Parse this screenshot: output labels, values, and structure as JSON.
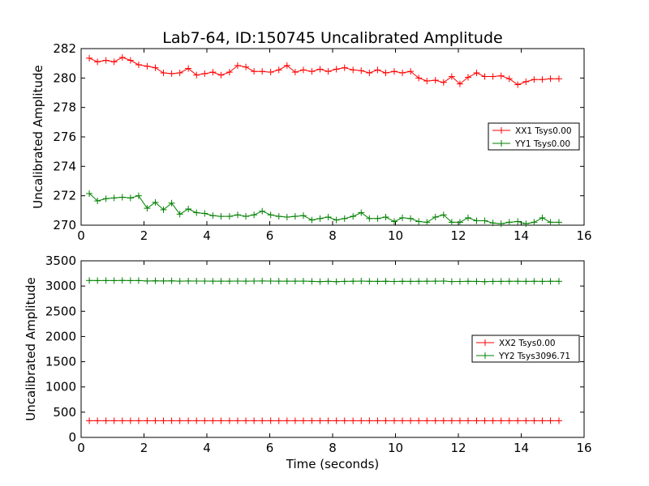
{
  "colors": {
    "red": "#ff0000",
    "green": "#008000",
    "axis": "#000000",
    "background": "#ffffff"
  },
  "title": "Lab7-64, ID:150745 Uncalibrated Amplitude",
  "xlabel": "Time (seconds)",
  "chart_data": [
    {
      "type": "line",
      "ylabel": "Uncalibrated Amplitude",
      "xlim": [
        0,
        16
      ],
      "ylim": [
        270,
        282
      ],
      "xticks": [
        0,
        2,
        4,
        6,
        8,
        10,
        12,
        14,
        16
      ],
      "yticks": [
        270,
        272,
        274,
        276,
        278,
        280,
        282
      ],
      "legend_position": "right",
      "series": [
        {
          "name": "XX1 Tsys0.00",
          "color": "#ff0000",
          "x": [
            0.26,
            0.52,
            0.79,
            1.05,
            1.31,
            1.57,
            1.83,
            2.1,
            2.36,
            2.62,
            2.88,
            3.14,
            3.41,
            3.67,
            3.93,
            4.19,
            4.45,
            4.72,
            4.98,
            5.24,
            5.5,
            5.76,
            6.03,
            6.29,
            6.55,
            6.81,
            7.07,
            7.34,
            7.6,
            7.86,
            8.12,
            8.38,
            8.65,
            8.91,
            9.17,
            9.43,
            9.69,
            9.96,
            10.22,
            10.48,
            10.74,
            11.0,
            11.27,
            11.53,
            11.79,
            12.05,
            12.31,
            12.58,
            12.84,
            13.1,
            13.36,
            13.62,
            13.89,
            14.15,
            14.41,
            14.67,
            14.93,
            15.2
          ],
          "y": [
            281.35,
            281.1,
            281.2,
            281.1,
            281.4,
            281.2,
            280.9,
            280.8,
            280.7,
            280.35,
            280.3,
            280.35,
            280.65,
            280.2,
            280.3,
            280.4,
            280.2,
            280.4,
            280.85,
            280.75,
            280.45,
            280.45,
            280.4,
            280.55,
            280.85,
            280.4,
            280.55,
            280.45,
            280.6,
            280.45,
            280.6,
            280.7,
            280.55,
            280.5,
            280.35,
            280.55,
            280.35,
            280.45,
            280.35,
            280.45,
            280.0,
            279.8,
            279.85,
            279.7,
            280.1,
            279.6,
            280.05,
            280.35,
            280.1,
            280.1,
            280.15,
            279.95,
            279.55,
            279.75,
            279.9,
            279.9,
            279.95,
            279.95
          ]
        },
        {
          "name": "YY1 Tsys0.00",
          "color": "#008000",
          "x": [
            0.26,
            0.52,
            0.79,
            1.05,
            1.31,
            1.57,
            1.83,
            2.1,
            2.36,
            2.62,
            2.88,
            3.14,
            3.41,
            3.67,
            3.93,
            4.19,
            4.45,
            4.72,
            4.98,
            5.24,
            5.5,
            5.76,
            6.03,
            6.29,
            6.55,
            6.81,
            7.07,
            7.34,
            7.6,
            7.86,
            8.12,
            8.38,
            8.65,
            8.91,
            9.17,
            9.43,
            9.69,
            9.96,
            10.22,
            10.48,
            10.74,
            11.0,
            11.27,
            11.53,
            11.79,
            12.05,
            12.31,
            12.58,
            12.84,
            13.1,
            13.36,
            13.62,
            13.89,
            14.15,
            14.41,
            14.67,
            14.93,
            15.2
          ],
          "y": [
            272.15,
            271.65,
            271.8,
            271.85,
            271.9,
            271.85,
            272.0,
            271.15,
            271.55,
            271.05,
            271.5,
            270.75,
            271.1,
            270.85,
            270.8,
            270.65,
            270.6,
            270.6,
            270.7,
            270.6,
            270.7,
            270.95,
            270.7,
            270.6,
            270.55,
            270.6,
            270.65,
            270.35,
            270.45,
            270.55,
            270.35,
            270.45,
            270.6,
            270.85,
            270.45,
            270.45,
            270.55,
            270.25,
            270.5,
            270.45,
            270.25,
            270.2,
            270.55,
            270.7,
            270.2,
            270.2,
            270.5,
            270.3,
            270.3,
            270.15,
            270.1,
            270.2,
            270.25,
            270.1,
            270.2,
            270.5,
            270.2,
            270.2
          ]
        }
      ]
    },
    {
      "type": "line",
      "ylabel": "Uncalibrated Amplitude",
      "xlabel": "Time (seconds)",
      "xlim": [
        0,
        16
      ],
      "ylim": [
        0,
        3500
      ],
      "xticks": [
        0,
        2,
        4,
        6,
        8,
        10,
        12,
        14,
        16
      ],
      "yticks": [
        0,
        500,
        1000,
        1500,
        2000,
        2500,
        3000,
        3500
      ],
      "legend_position": "right",
      "series": [
        {
          "name": "XX2 Tsys0.00",
          "color": "#ff0000",
          "x": [
            0.26,
            0.52,
            0.79,
            1.05,
            1.31,
            1.57,
            1.83,
            2.1,
            2.36,
            2.62,
            2.88,
            3.14,
            3.41,
            3.67,
            3.93,
            4.19,
            4.45,
            4.72,
            4.98,
            5.24,
            5.5,
            5.76,
            6.03,
            6.29,
            6.55,
            6.81,
            7.07,
            7.34,
            7.6,
            7.86,
            8.12,
            8.38,
            8.65,
            8.91,
            9.17,
            9.43,
            9.69,
            9.96,
            10.22,
            10.48,
            10.74,
            11.0,
            11.27,
            11.53,
            11.79,
            12.05,
            12.31,
            12.58,
            12.84,
            13.1,
            13.36,
            13.62,
            13.89,
            14.15,
            14.41,
            14.67,
            14.93,
            15.2
          ],
          "y": [
            330,
            330,
            330,
            330,
            330,
            330,
            330,
            330,
            330,
            330,
            330,
            330,
            330,
            330,
            330,
            330,
            330,
            330,
            330,
            330,
            330,
            330,
            330,
            330,
            330,
            330,
            330,
            330,
            330,
            330,
            330,
            330,
            330,
            330,
            330,
            330,
            330,
            330,
            330,
            330,
            330,
            330,
            330,
            330,
            330,
            330,
            330,
            330,
            330,
            330,
            330,
            330,
            330,
            330,
            330,
            330,
            330,
            330
          ]
        },
        {
          "name": "YY2 Tsys3096.71",
          "color": "#008000",
          "x": [
            0.26,
            0.52,
            0.79,
            1.05,
            1.31,
            1.57,
            1.83,
            2.1,
            2.36,
            2.62,
            2.88,
            3.14,
            3.41,
            3.67,
            3.93,
            4.19,
            4.45,
            4.72,
            4.98,
            5.24,
            5.5,
            5.76,
            6.03,
            6.29,
            6.55,
            6.81,
            7.07,
            7.34,
            7.6,
            7.86,
            8.12,
            8.38,
            8.65,
            8.91,
            9.17,
            9.43,
            9.69,
            9.96,
            10.22,
            10.48,
            10.74,
            11.0,
            11.27,
            11.53,
            11.79,
            12.05,
            12.31,
            12.58,
            12.84,
            13.1,
            13.36,
            13.62,
            13.89,
            14.15,
            14.41,
            14.67,
            14.93,
            15.2
          ],
          "y": [
            3110,
            3108,
            3109,
            3108,
            3110,
            3108,
            3109,
            3100,
            3104,
            3101,
            3103,
            3097,
            3100,
            3099,
            3098,
            3097,
            3097,
            3097,
            3098,
            3097,
            3098,
            3100,
            3098,
            3097,
            3097,
            3097,
            3098,
            3093,
            3088,
            3094,
            3086,
            3093,
            3096,
            3099,
            3094,
            3093,
            3095,
            3090,
            3094,
            3093,
            3094,
            3096,
            3097,
            3099,
            3089,
            3091,
            3094,
            3092,
            3087,
            3092,
            3093,
            3094,
            3095,
            3093,
            3094,
            3093,
            3094,
            3094
          ]
        }
      ]
    }
  ]
}
